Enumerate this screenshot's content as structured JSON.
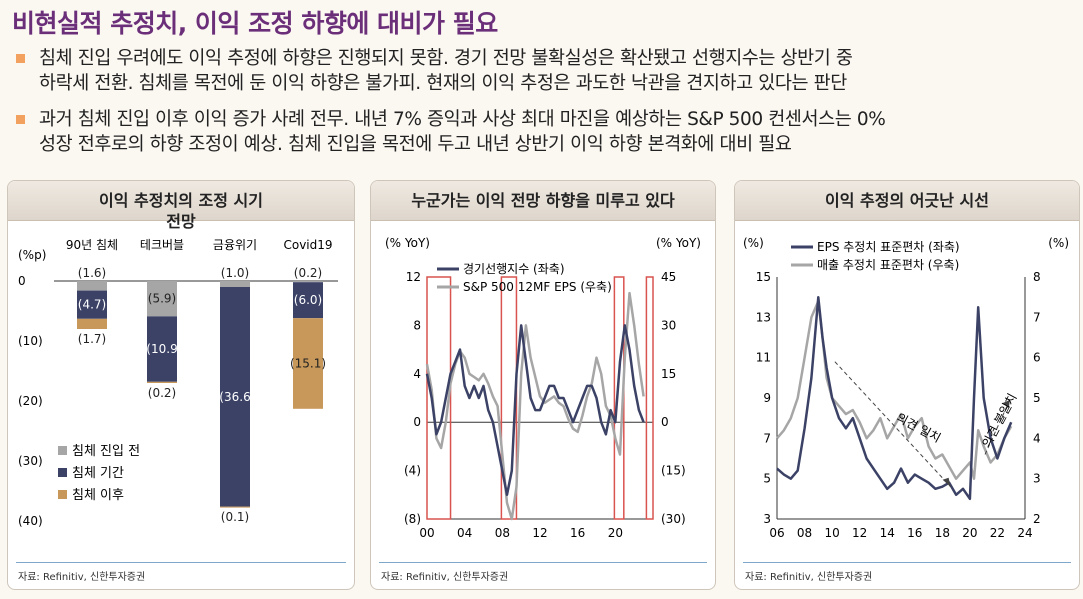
{
  "title": "비현실적 추정치, 이익 조정 하향에 대비가 필요",
  "bullets": [
    {
      "lines": [
        "침체 진입 우려에도 이익 추정에 하향은 진행되지 못함. 경기 전망 불확실성은 확산됐고 선행지수는 상반기 중",
        "하락세 전환. 침체를 목전에 둔 이익 하향은 불가피. 현재의 이익 추정은 과도한 낙관을 견지하고 있다는 판단"
      ]
    },
    {
      "lines": [
        "과거 침체 진입 이후 이익 증가 사례 전무. 내년 7% 증익과 사상 최대 마진을 예상하는 S&P 500 컨센서스는 0%",
        "성장 전후로의 하향 조정이 예상. 침체 진입을 목전에 두고 내년 상반기 이익 하향 본격화에 대비 필요"
      ]
    }
  ],
  "colors": {
    "title": "#6b2f7a",
    "bullet": "#f2a15f",
    "pre": "#a6a6a6",
    "during": "#3b4266",
    "after": "#c8985a",
    "highlight": "#d9534f"
  },
  "chart_data": [
    {
      "type": "bar",
      "panel_title": "이익 추정치의 조정 시기",
      "panel_title_wrap": "전망",
      "unit": "(%p)",
      "categories": [
        "90년 침체",
        "테크버블",
        "금융위기",
        "Covid19"
      ],
      "series": [
        {
          "name": "침체 진입 전",
          "values": [
            -1.6,
            -5.9,
            -1.0,
            -0.2
          ],
          "labels": [
            "(1.6)",
            "(5.9)",
            "(1.0)",
            "(0.2)"
          ]
        },
        {
          "name": "침체 기간",
          "values": [
            -4.7,
            -10.9,
            -36.6,
            -6.0
          ],
          "labels": [
            "(4.7)",
            "(10.9",
            "(36.6",
            "(6.0)"
          ]
        },
        {
          "name": "침체 이후",
          "values": [
            -1.7,
            -0.2,
            -0.1,
            -15.1
          ],
          "labels": [
            "(1.7)",
            "(0.2)",
            "(0.1)",
            "(15.1)"
          ]
        }
      ],
      "ylim": [
        -40,
        0
      ],
      "yticks": [
        "0",
        "(10)",
        "(20)",
        "(30)",
        "(40)"
      ],
      "source": "자료: Refinitiv, 신한투자증권"
    },
    {
      "type": "line",
      "panel_title": "누군가는 이익 전망 하향을 미루고 있다",
      "left_unit": "(% YoY)",
      "right_unit": "(% YoY)",
      "xticks": [
        "00",
        "04",
        "08",
        "12",
        "16",
        "20"
      ],
      "yticks_left": [
        "12",
        "8",
        "4",
        "0",
        "(4)",
        "(8)"
      ],
      "yticks_right": [
        "45",
        "30",
        "15",
        "0",
        "(15)",
        "(30)"
      ],
      "ylim_left": [
        -8,
        12
      ],
      "ylim_right": [
        -30,
        45
      ],
      "shaded_periods": [
        [
          2000.0,
          2002.5
        ],
        [
          2007.9,
          2009.5
        ],
        [
          2019.9,
          2020.9
        ],
        [
          2023.3,
          2024.0
        ]
      ],
      "series": [
        {
          "name": "경기선행지수 (좌축)",
          "axis": "left",
          "x": [
            2000,
            2000.5,
            2001,
            2001.5,
            2002,
            2002.5,
            2003,
            2003.5,
            2004,
            2004.5,
            2005,
            2005.5,
            2006,
            2006.5,
            2007,
            2007.5,
            2008,
            2008.5,
            2009,
            2009.5,
            2010,
            2010.5,
            2011,
            2011.5,
            2012,
            2012.5,
            2013,
            2013.5,
            2014,
            2014.5,
            2015,
            2015.5,
            2016,
            2016.5,
            2017,
            2017.5,
            2018,
            2018.5,
            2019,
            2019.5,
            2020,
            2020.5,
            2021,
            2021.5,
            2022,
            2022.5,
            2023
          ],
          "y": [
            4,
            2,
            -1,
            0,
            2,
            4,
            5,
            6,
            3,
            2,
            3,
            2,
            3,
            1,
            0,
            -2,
            -4,
            -6,
            -4,
            4,
            8,
            5,
            2,
            1,
            1,
            2,
            3,
            3,
            2,
            2,
            1,
            0,
            1,
            2,
            3,
            3,
            2,
            0,
            -1,
            1,
            0,
            5,
            8,
            6,
            3,
            1,
            0
          ]
        },
        {
          "name": "S&P 500 12MF EPS (우축)",
          "axis": "right",
          "x": [
            2000,
            2000.5,
            2001,
            2001.5,
            2002,
            2002.5,
            2003,
            2003.5,
            2004,
            2004.5,
            2005,
            2005.5,
            2006,
            2006.5,
            2007,
            2007.5,
            2008,
            2008.5,
            2009,
            2009.5,
            2010,
            2010.5,
            2011,
            2011.5,
            2012,
            2012.5,
            2013,
            2013.5,
            2014,
            2014.5,
            2015,
            2015.5,
            2016,
            2016.5,
            2017,
            2017.5,
            2018,
            2018.5,
            2019,
            2019.5,
            2020,
            2020.5,
            2021,
            2021.5,
            2022,
            2022.5,
            2023
          ],
          "y": [
            18,
            10,
            -5,
            -8,
            0,
            12,
            18,
            22,
            20,
            15,
            14,
            13,
            15,
            12,
            8,
            5,
            -10,
            -25,
            -30,
            -20,
            15,
            30,
            20,
            14,
            8,
            6,
            7,
            8,
            6,
            5,
            1,
            -2,
            -3,
            2,
            8,
            12,
            20,
            15,
            5,
            2,
            -5,
            -10,
            20,
            40,
            30,
            18,
            8
          ]
        }
      ],
      "source": "자료: Refinitiv, 신한투자증권"
    },
    {
      "type": "line",
      "panel_title": "이익 추정의 어긋난 시선",
      "left_unit": "(%)",
      "right_unit": "(%)",
      "xticks": [
        "06",
        "08",
        "10",
        "12",
        "14",
        "16",
        "18",
        "20",
        "22",
        "24"
      ],
      "yticks_left": [
        "15",
        "13",
        "11",
        "9",
        "7",
        "5",
        "3"
      ],
      "yticks_right": [
        "8",
        "7",
        "6",
        "5",
        "4",
        "3",
        "2"
      ],
      "ylim_left": [
        3,
        15
      ],
      "ylim_right": [
        2,
        8
      ],
      "annotations": [
        "의견 일치",
        "의견 불일치"
      ],
      "series": [
        {
          "name": "EPS 추정치 표준편차 (좌축)",
          "axis": "left",
          "x": [
            2006,
            2006.5,
            2007,
            2007.5,
            2008,
            2008.5,
            2009,
            2009.3,
            2009.6,
            2010,
            2010.5,
            2011,
            2011.5,
            2012,
            2012.5,
            2013,
            2013.5,
            2014,
            2014.5,
            2015,
            2015.5,
            2016,
            2016.5,
            2017,
            2017.5,
            2018,
            2018.5,
            2019,
            2019.5,
            2020,
            2020.3,
            2020.6,
            2021,
            2021.5,
            2022,
            2022.5,
            2023
          ],
          "y": [
            5.5,
            5.2,
            5.0,
            5.4,
            7.5,
            10.0,
            14.0,
            12.0,
            10.5,
            9.0,
            8.0,
            7.5,
            8.0,
            7.0,
            6.0,
            5.5,
            5.0,
            4.5,
            4.8,
            5.5,
            4.8,
            5.2,
            5.0,
            4.8,
            4.5,
            4.6,
            4.8,
            4.2,
            4.5,
            4.0,
            9.0,
            13.5,
            9.0,
            7.0,
            6.0,
            7.0,
            7.8
          ]
        },
        {
          "name": "매출 추정치 표준편차 (우축)",
          "axis": "right",
          "x": [
            2006,
            2006.5,
            2007,
            2007.5,
            2008,
            2008.5,
            2009,
            2009.3,
            2009.6,
            2010,
            2010.5,
            2011,
            2011.5,
            2012,
            2012.5,
            2013,
            2013.5,
            2014,
            2014.5,
            2015,
            2015.5,
            2016,
            2016.5,
            2017,
            2017.5,
            2018,
            2018.5,
            2019,
            2019.5,
            2020,
            2020.3,
            2020.6,
            2021,
            2021.5,
            2022,
            2022.5,
            2023
          ],
          "y": [
            4.0,
            4.2,
            4.5,
            5.0,
            6.0,
            7.0,
            7.4,
            6.5,
            5.5,
            5.0,
            4.8,
            4.6,
            4.7,
            4.4,
            4.0,
            4.2,
            4.5,
            4.0,
            4.3,
            4.6,
            4.0,
            4.3,
            4.5,
            3.8,
            3.5,
            3.6,
            3.3,
            3.0,
            3.2,
            3.4,
            3.0,
            4.2,
            3.8,
            3.4,
            3.6,
            4.0,
            4.3
          ]
        }
      ],
      "source": "자료: Refinitiv, 신한투자증권"
    }
  ]
}
